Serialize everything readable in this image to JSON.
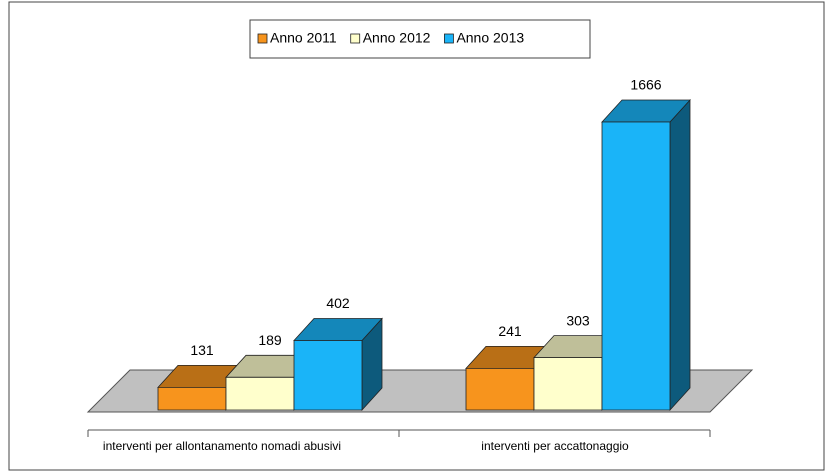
{
  "chart_data": {
    "type": "bar3d",
    "categories": [
      "interventi per allontanamento nomadi abusivi",
      "interventi per accattonaggio"
    ],
    "series": [
      {
        "name": "Anno 2011",
        "color": "#f7941d",
        "values": [
          131,
          241
        ]
      },
      {
        "name": "Anno 2012",
        "color": "#ffffcc",
        "values": [
          189,
          303
        ]
      },
      {
        "name": "Anno 2013",
        "color": "#1ab4f8",
        "values": [
          402,
          1666
        ]
      }
    ],
    "legend": "top"
  }
}
